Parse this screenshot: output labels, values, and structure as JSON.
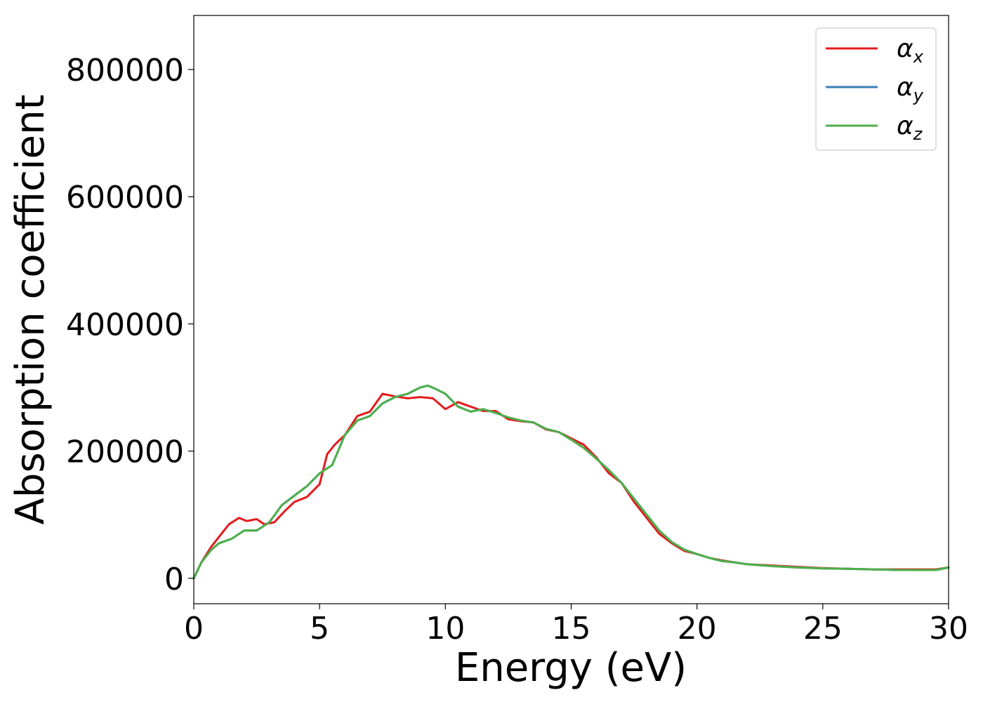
{
  "chart_data": {
    "type": "line",
    "title": "",
    "xlabel": "Energy (eV)",
    "ylabel": "Absorption coefficient",
    "xlim": [
      0,
      30
    ],
    "ylim": [
      -40000,
      885000
    ],
    "xticks": [
      0,
      5,
      10,
      15,
      20,
      25,
      30
    ],
    "yticks": [
      0,
      200000,
      400000,
      600000,
      800000
    ],
    "grid": false,
    "legend_position": "top-right",
    "series": [
      {
        "name": "α_x",
        "label_main": "α",
        "label_sub": "x",
        "color": "#e41a1c",
        "x": [
          0,
          0.3,
          0.7,
          1.0,
          1.4,
          1.8,
          2.1,
          2.5,
          2.8,
          3.2,
          3.6,
          4.0,
          4.5,
          5.0,
          5.3,
          5.6,
          6.0,
          6.5,
          7.0,
          7.5,
          8.0,
          8.5,
          9.0,
          9.5,
          10.0,
          10.5,
          11.0,
          11.5,
          12.0,
          12.5,
          13.0,
          13.5,
          14.0,
          14.5,
          15.0,
          15.5,
          16.0,
          16.5,
          17.0,
          17.5,
          18.0,
          18.5,
          19.0,
          19.5,
          20.0,
          20.5,
          21.0,
          21.5,
          22.0,
          23.0,
          24.0,
          25.0,
          26.0,
          27.0,
          28.0,
          29.0,
          29.5,
          30.0
        ],
        "y": [
          0,
          25000,
          50000,
          65000,
          85000,
          95000,
          90000,
          93000,
          85000,
          88000,
          105000,
          120000,
          128000,
          148000,
          195000,
          210000,
          225000,
          255000,
          262000,
          290000,
          286000,
          283000,
          285000,
          283000,
          266000,
          277000,
          270000,
          263000,
          263000,
          250000,
          247000,
          245000,
          234000,
          230000,
          220000,
          210000,
          190000,
          165000,
          150000,
          120000,
          95000,
          70000,
          55000,
          43000,
          38000,
          32000,
          28000,
          25000,
          22000,
          20000,
          18000,
          16000,
          15000,
          14000,
          14000,
          14000,
          14000,
          17000
        ]
      },
      {
        "name": "α_y",
        "label_main": "α",
        "label_sub": "y",
        "color": "#377eb8",
        "x": [
          0,
          0.3,
          0.7,
          1.0,
          1.5,
          2.0,
          2.5,
          3.0,
          3.5,
          4.0,
          4.5,
          5.0,
          5.5,
          6.0,
          6.5,
          7.0,
          7.5,
          8.0,
          8.5,
          9.0,
          9.3,
          9.6,
          10.0,
          10.5,
          11.0,
          11.5,
          12.0,
          12.5,
          13.0,
          13.5,
          14.0,
          14.5,
          15.0,
          15.5,
          16.0,
          16.5,
          17.0,
          17.5,
          18.0,
          18.5,
          19.0,
          19.5,
          20.0,
          20.5,
          21.0,
          21.5,
          22.0,
          23.0,
          24.0,
          25.0,
          26.0,
          27.0,
          28.0,
          29.0,
          29.5,
          30.0
        ],
        "y": [
          0,
          25000,
          45000,
          55000,
          62000,
          75000,
          75000,
          88000,
          115000,
          130000,
          145000,
          165000,
          178000,
          225000,
          248000,
          255000,
          275000,
          285000,
          290000,
          300000,
          303000,
          298000,
          290000,
          270000,
          262000,
          266000,
          260000,
          253000,
          248000,
          245000,
          235000,
          230000,
          218000,
          205000,
          188000,
          170000,
          150000,
          125000,
          100000,
          75000,
          57000,
          45000,
          38000,
          32000,
          27000,
          25000,
          22000,
          19000,
          17000,
          15500,
          15000,
          14000,
          13000,
          13000,
          13000,
          17000
        ]
      },
      {
        "name": "α_z",
        "label_main": "α",
        "label_sub": "z",
        "color": "#4daf4a",
        "x": [
          0,
          0.3,
          0.7,
          1.0,
          1.5,
          2.0,
          2.5,
          3.0,
          3.5,
          4.0,
          4.5,
          5.0,
          5.5,
          6.0,
          6.5,
          7.0,
          7.5,
          8.0,
          8.5,
          9.0,
          9.3,
          9.6,
          10.0,
          10.5,
          11.0,
          11.5,
          12.0,
          12.5,
          13.0,
          13.5,
          14.0,
          14.5,
          15.0,
          15.5,
          16.0,
          16.5,
          17.0,
          17.5,
          18.0,
          18.5,
          19.0,
          19.5,
          20.0,
          20.5,
          21.0,
          21.5,
          22.0,
          23.0,
          24.0,
          25.0,
          26.0,
          27.0,
          28.0,
          29.0,
          29.5,
          30.0
        ],
        "y": [
          0,
          25000,
          45000,
          55000,
          62000,
          75000,
          75000,
          88000,
          115000,
          130000,
          145000,
          165000,
          178000,
          225000,
          248000,
          255000,
          275000,
          285000,
          290000,
          300000,
          303000,
          298000,
          290000,
          270000,
          262000,
          266000,
          260000,
          253000,
          248000,
          245000,
          235000,
          230000,
          218000,
          205000,
          188000,
          170000,
          150000,
          125000,
          100000,
          75000,
          57000,
          45000,
          38000,
          32000,
          27000,
          25000,
          22000,
          19000,
          17000,
          15500,
          15000,
          14000,
          13000,
          13000,
          13000,
          17000
        ]
      }
    ]
  }
}
